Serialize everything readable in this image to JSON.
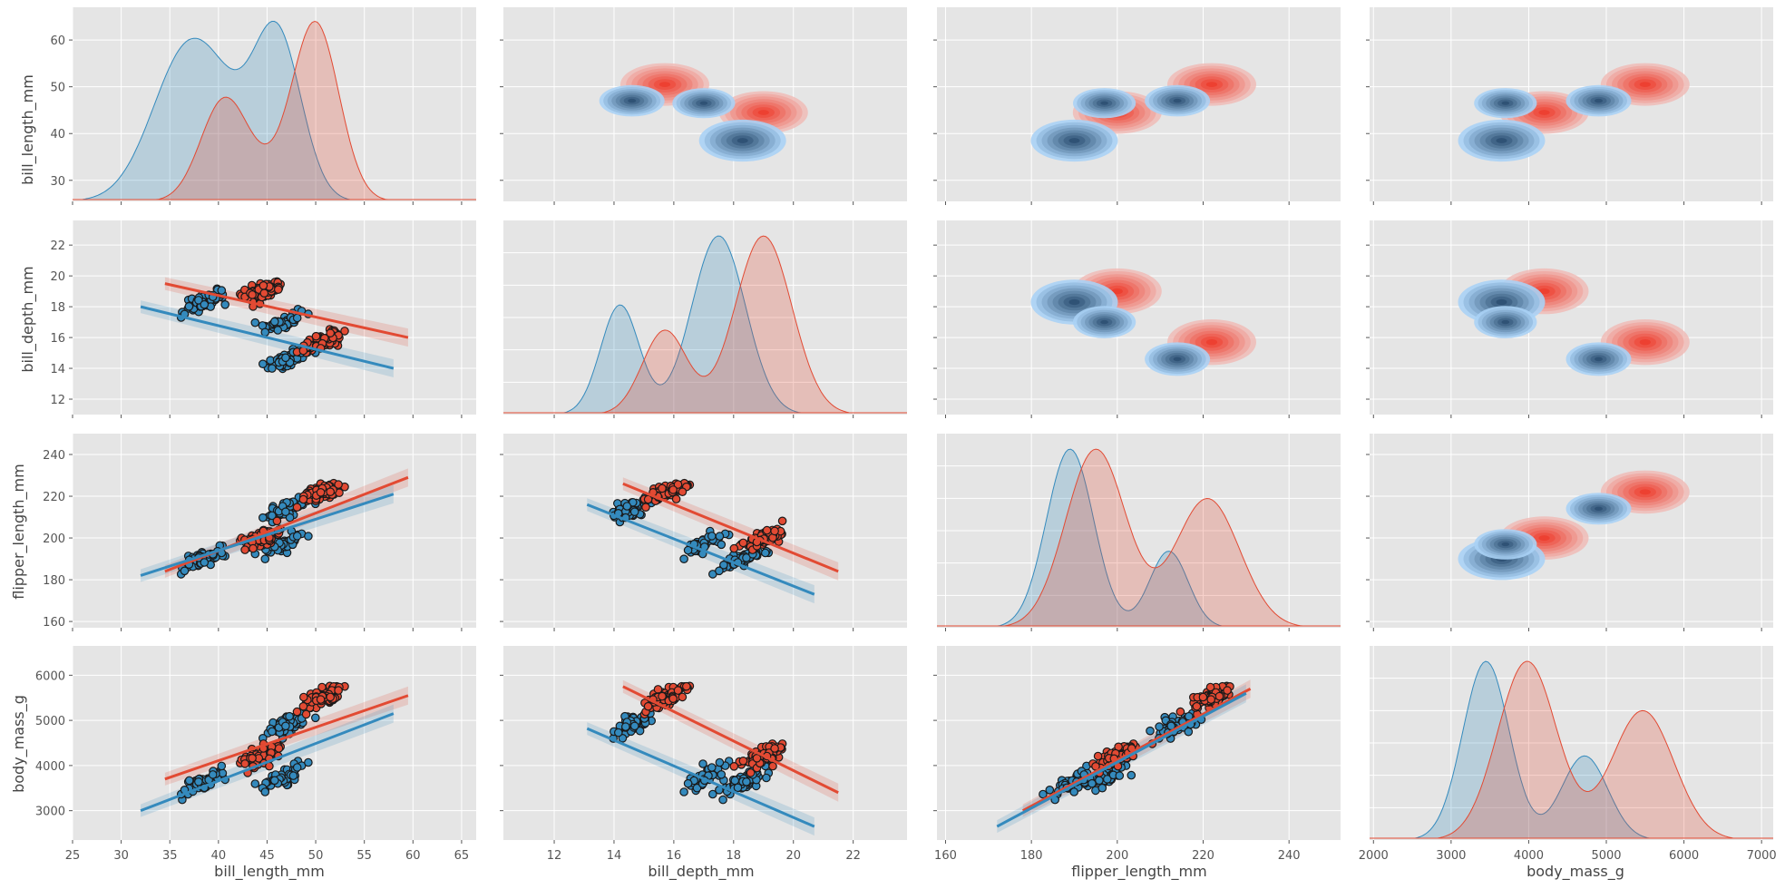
{
  "chart_data": {
    "type": "scatter",
    "title": "",
    "grid": true,
    "legend": null,
    "colors": {
      "blue": "#348ABD",
      "red": "#E24A33",
      "panel_background": "#E5E5E5",
      "grid": "#FFFFFF"
    },
    "variables": [
      {
        "name": "bill_length_mm",
        "label": "bill_length_mm",
        "lim": [
          25,
          66.5
        ],
        "ticks": [
          25,
          30,
          35,
          40,
          45,
          50,
          55,
          60,
          65
        ],
        "y_lim": [
          25.5,
          67
        ],
        "y_ticks": [
          30,
          40,
          50,
          60
        ]
      },
      {
        "name": "bill_depth_mm",
        "label": "bill_depth_mm",
        "lim": [
          10.3,
          23.8
        ],
        "ticks": [
          12,
          14,
          16,
          18,
          20,
          22
        ],
        "y_lim": [
          11,
          23.6
        ],
        "y_ticks": [
          12,
          14,
          16,
          18,
          20,
          22
        ]
      },
      {
        "name": "flipper_length_mm",
        "label": "flipper_length_mm",
        "lim": [
          158,
          252
        ],
        "ticks": [
          160,
          180,
          200,
          220,
          240
        ],
        "y_lim": [
          157,
          250
        ],
        "y_ticks": [
          160,
          180,
          200,
          220,
          240
        ]
      },
      {
        "name": "body_mass_g",
        "label": "body_mass_g",
        "lim": [
          1950,
          7150
        ],
        "ticks": [
          2000,
          3000,
          4000,
          5000,
          6000,
          7000
        ],
        "y_lim": [
          2350,
          6650
        ],
        "y_ticks": [
          3000,
          4000,
          5000,
          6000
        ]
      }
    ],
    "diag_density": [
      {
        "blue": {
          "peaks": [
            [
              37.0,
              3.7,
              0.6
            ],
            [
              46.0,
              2.5,
              0.65
            ],
            [
              41.0,
              2.5,
              0.1
            ]
          ],
          "height": 64
        },
        "red": {
          "peaks": [
            [
              40.5,
              2.4,
              0.35
            ],
            [
              50.0,
              2.4,
              0.65
            ],
            [
              44.5,
              3.0,
              0.08
            ]
          ],
          "height": 64
        }
      },
      {
        "blue": {
          "peaks": [
            [
              14.2,
              0.65,
              0.38
            ],
            [
              17.5,
              0.9,
              0.62
            ]
          ],
          "height": 21.8
        },
        "red": {
          "peaks": [
            [
              15.7,
              0.75,
              0.32
            ],
            [
              19.0,
              0.95,
              0.68
            ]
          ],
          "height": 21.5
        }
      },
      {
        "blue": {
          "peaks": [
            [
              189,
              5.5,
              0.7
            ],
            [
              212,
              4.5,
              0.3
            ]
          ],
          "height": 230
        },
        "red": {
          "peaks": [
            [
              195,
              7.0,
              0.58
            ],
            [
              221,
              7.5,
              0.42
            ]
          ],
          "height": 220
        }
      },
      {
        "blue": {
          "peaks": [
            [
              3450,
              300,
              0.68
            ],
            [
              4720,
              300,
              0.32
            ]
          ],
          "height": 6250
        },
        "red": {
          "peaks": [
            [
              3980,
              380,
              0.58
            ],
            [
              5470,
              400,
              0.42
            ]
          ],
          "height": 5750
        }
      }
    ],
    "kde_clusters": {
      "blue": [
        {
          "bill_length_mm": 38.5,
          "bill_depth_mm": 18.3,
          "flipper_length_mm": 190,
          "body_mass_g": 3650,
          "weight": 0.48
        },
        {
          "bill_length_mm": 47.0,
          "bill_depth_mm": 14.6,
          "flipper_length_mm": 214,
          "body_mass_g": 4900,
          "weight": 0.27
        },
        {
          "bill_length_mm": 46.5,
          "bill_depth_mm": 17.0,
          "flipper_length_mm": 197,
          "body_mass_g": 3700,
          "weight": 0.25
        }
      ],
      "red": [
        {
          "bill_length_mm": 44.5,
          "bill_depth_mm": 19.0,
          "flipper_length_mm": 200,
          "body_mass_g": 4200,
          "weight": 0.5
        },
        {
          "bill_length_mm": 50.5,
          "bill_depth_mm": 15.7,
          "flipper_length_mm": 222,
          "body_mass_g": 5500,
          "weight": 0.5
        }
      ]
    },
    "regression": {
      "blue": {
        "bill_length_mm|bill_depth_mm": [
          [
            32,
            18.0
          ],
          [
            58,
            14.0
          ]
        ],
        "bill_length_mm|flipper_length_mm": [
          [
            32,
            182
          ],
          [
            58,
            221
          ]
        ],
        "bill_length_mm|body_mass_g": [
          [
            32,
            3000
          ],
          [
            58,
            5150
          ]
        ],
        "bill_depth_mm|flipper_length_mm": [
          [
            13.1,
            216
          ],
          [
            20.7,
            173
          ]
        ],
        "bill_depth_mm|body_mass_g": [
          [
            13.1,
            4820
          ],
          [
            20.7,
            2650
          ]
        ],
        "flipper_length_mm|body_mass_g": [
          [
            172,
            2650
          ],
          [
            230,
            5600
          ]
        ]
      },
      "red": {
        "bill_length_mm|bill_depth_mm": [
          [
            34.5,
            19.5
          ],
          [
            59.5,
            16.0
          ]
        ],
        "bill_length_mm|flipper_length_mm": [
          [
            34.5,
            184
          ],
          [
            59.5,
            229
          ]
        ],
        "bill_length_mm|body_mass_g": [
          [
            34.5,
            3700
          ],
          [
            59.5,
            5550
          ]
        ],
        "bill_depth_mm|flipper_length_mm": [
          [
            14.3,
            226
          ],
          [
            21.5,
            184
          ]
        ],
        "bill_depth_mm|body_mass_g": [
          [
            14.3,
            5750
          ],
          [
            21.5,
            3400
          ]
        ],
        "flipper_length_mm|body_mass_g": [
          [
            178,
            3000
          ],
          [
            231,
            5700
          ]
        ]
      }
    },
    "scatter_counts": {
      "blue": 170,
      "red": 170
    }
  }
}
